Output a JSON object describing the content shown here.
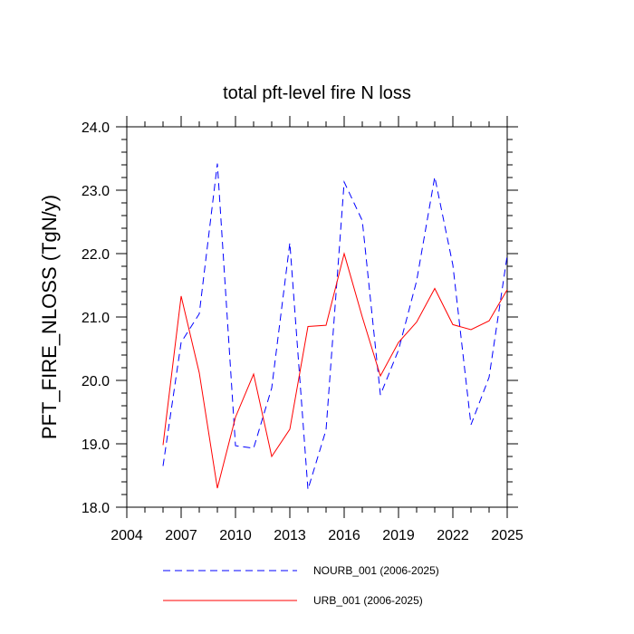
{
  "chart_data": {
    "type": "line",
    "title": "total pft-level fire N loss",
    "xlabel": "",
    "ylabel": "PFT_FIRE_NLOSS  (TgN/y)",
    "xlim": [
      2004,
      2025
    ],
    "ylim": [
      18.0,
      24.0
    ],
    "x_ticks": [
      2004,
      2007,
      2010,
      2013,
      2016,
      2019,
      2022,
      2025
    ],
    "x_tick_labels": [
      "2004",
      "2007",
      "2010",
      "2013",
      "2016",
      "2019",
      "2022",
      "2025"
    ],
    "y_ticks": [
      18.0,
      19.0,
      20.0,
      21.0,
      22.0,
      23.0,
      24.0
    ],
    "y_tick_labels": [
      "18.0",
      "19.0",
      "20.0",
      "21.0",
      "22.0",
      "23.0",
      "24.0"
    ],
    "x": [
      2006,
      2007,
      2008,
      2009,
      2010,
      2011,
      2012,
      2013,
      2014,
      2015,
      2016,
      2017,
      2018,
      2019,
      2020,
      2021,
      2022,
      2023,
      2024,
      2025
    ],
    "series": [
      {
        "name": "NOURB_001 (2006-2025)",
        "color": "#0000ff",
        "style": "dashed",
        "values": [
          18.65,
          20.6,
          21.05,
          23.42,
          18.97,
          18.93,
          19.88,
          22.17,
          18.28,
          19.22,
          23.13,
          22.52,
          19.77,
          20.48,
          21.57,
          23.21,
          21.82,
          19.3,
          20.05,
          21.97
        ]
      },
      {
        "name": "URB_001 (2006-2025)",
        "color": "#ff0000",
        "style": "solid",
        "values": [
          18.98,
          21.33,
          20.12,
          18.3,
          19.42,
          20.1,
          18.8,
          19.23,
          20.85,
          20.87,
          22.0,
          21.0,
          20.07,
          20.6,
          20.92,
          21.45,
          20.88,
          20.8,
          20.94,
          21.43
        ]
      }
    ],
    "legend_placement": "bottom"
  }
}
